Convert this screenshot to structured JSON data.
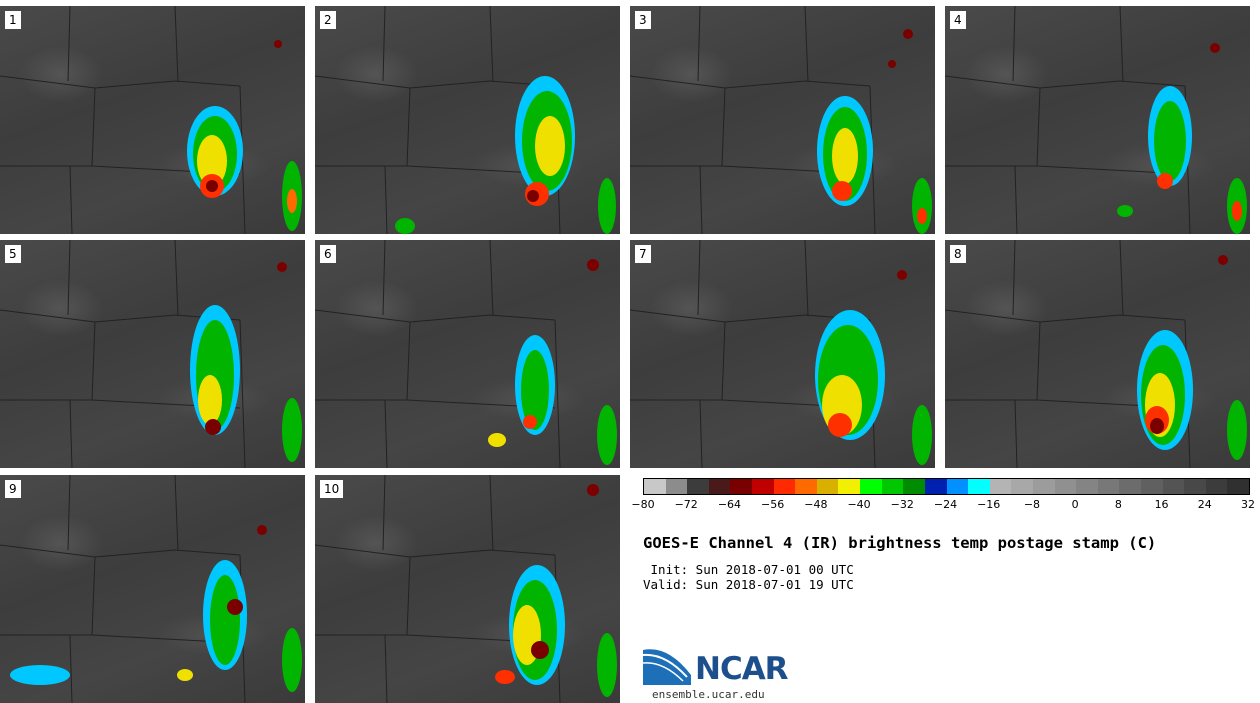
{
  "panels": [
    {
      "label": "1"
    },
    {
      "label": "2"
    },
    {
      "label": "3"
    },
    {
      "label": "4"
    },
    {
      "label": "5"
    },
    {
      "label": "6"
    },
    {
      "label": "7"
    },
    {
      "label": "8"
    },
    {
      "label": "9"
    },
    {
      "label": "10"
    }
  ],
  "colorbar": {
    "colors": [
      "#c8c8c8",
      "#8c8c8c",
      "#3c3c3c",
      "#4a1a1a",
      "#7a0000",
      "#c00000",
      "#ff2a00",
      "#ff6a00",
      "#d9b000",
      "#f0f000",
      "#00ff00",
      "#00c800",
      "#008c00",
      "#0020b0",
      "#0090ff",
      "#00ffff",
      "#b4b4b4",
      "#a8a8a8",
      "#9c9c9c",
      "#909090",
      "#848484",
      "#787878",
      "#6c6c6c",
      "#606060",
      "#545454",
      "#484848",
      "#3c3c3c",
      "#303030"
    ],
    "ticks": [
      "−80",
      "−72",
      "−64",
      "−56",
      "−48",
      "−40",
      "−32",
      "−24",
      "−16",
      "−8",
      "0",
      "8",
      "16",
      "24",
      "32"
    ]
  },
  "title": "GOES-E Channel 4 (IR) brightness temp postage stamp (C)",
  "init": " Init: Sun 2018-07-01 00 UTC",
  "valid": "Valid: Sun 2018-07-01 19 UTC",
  "logo": {
    "name": "NCAR",
    "site": "ensemble.ucar.edu"
  }
}
